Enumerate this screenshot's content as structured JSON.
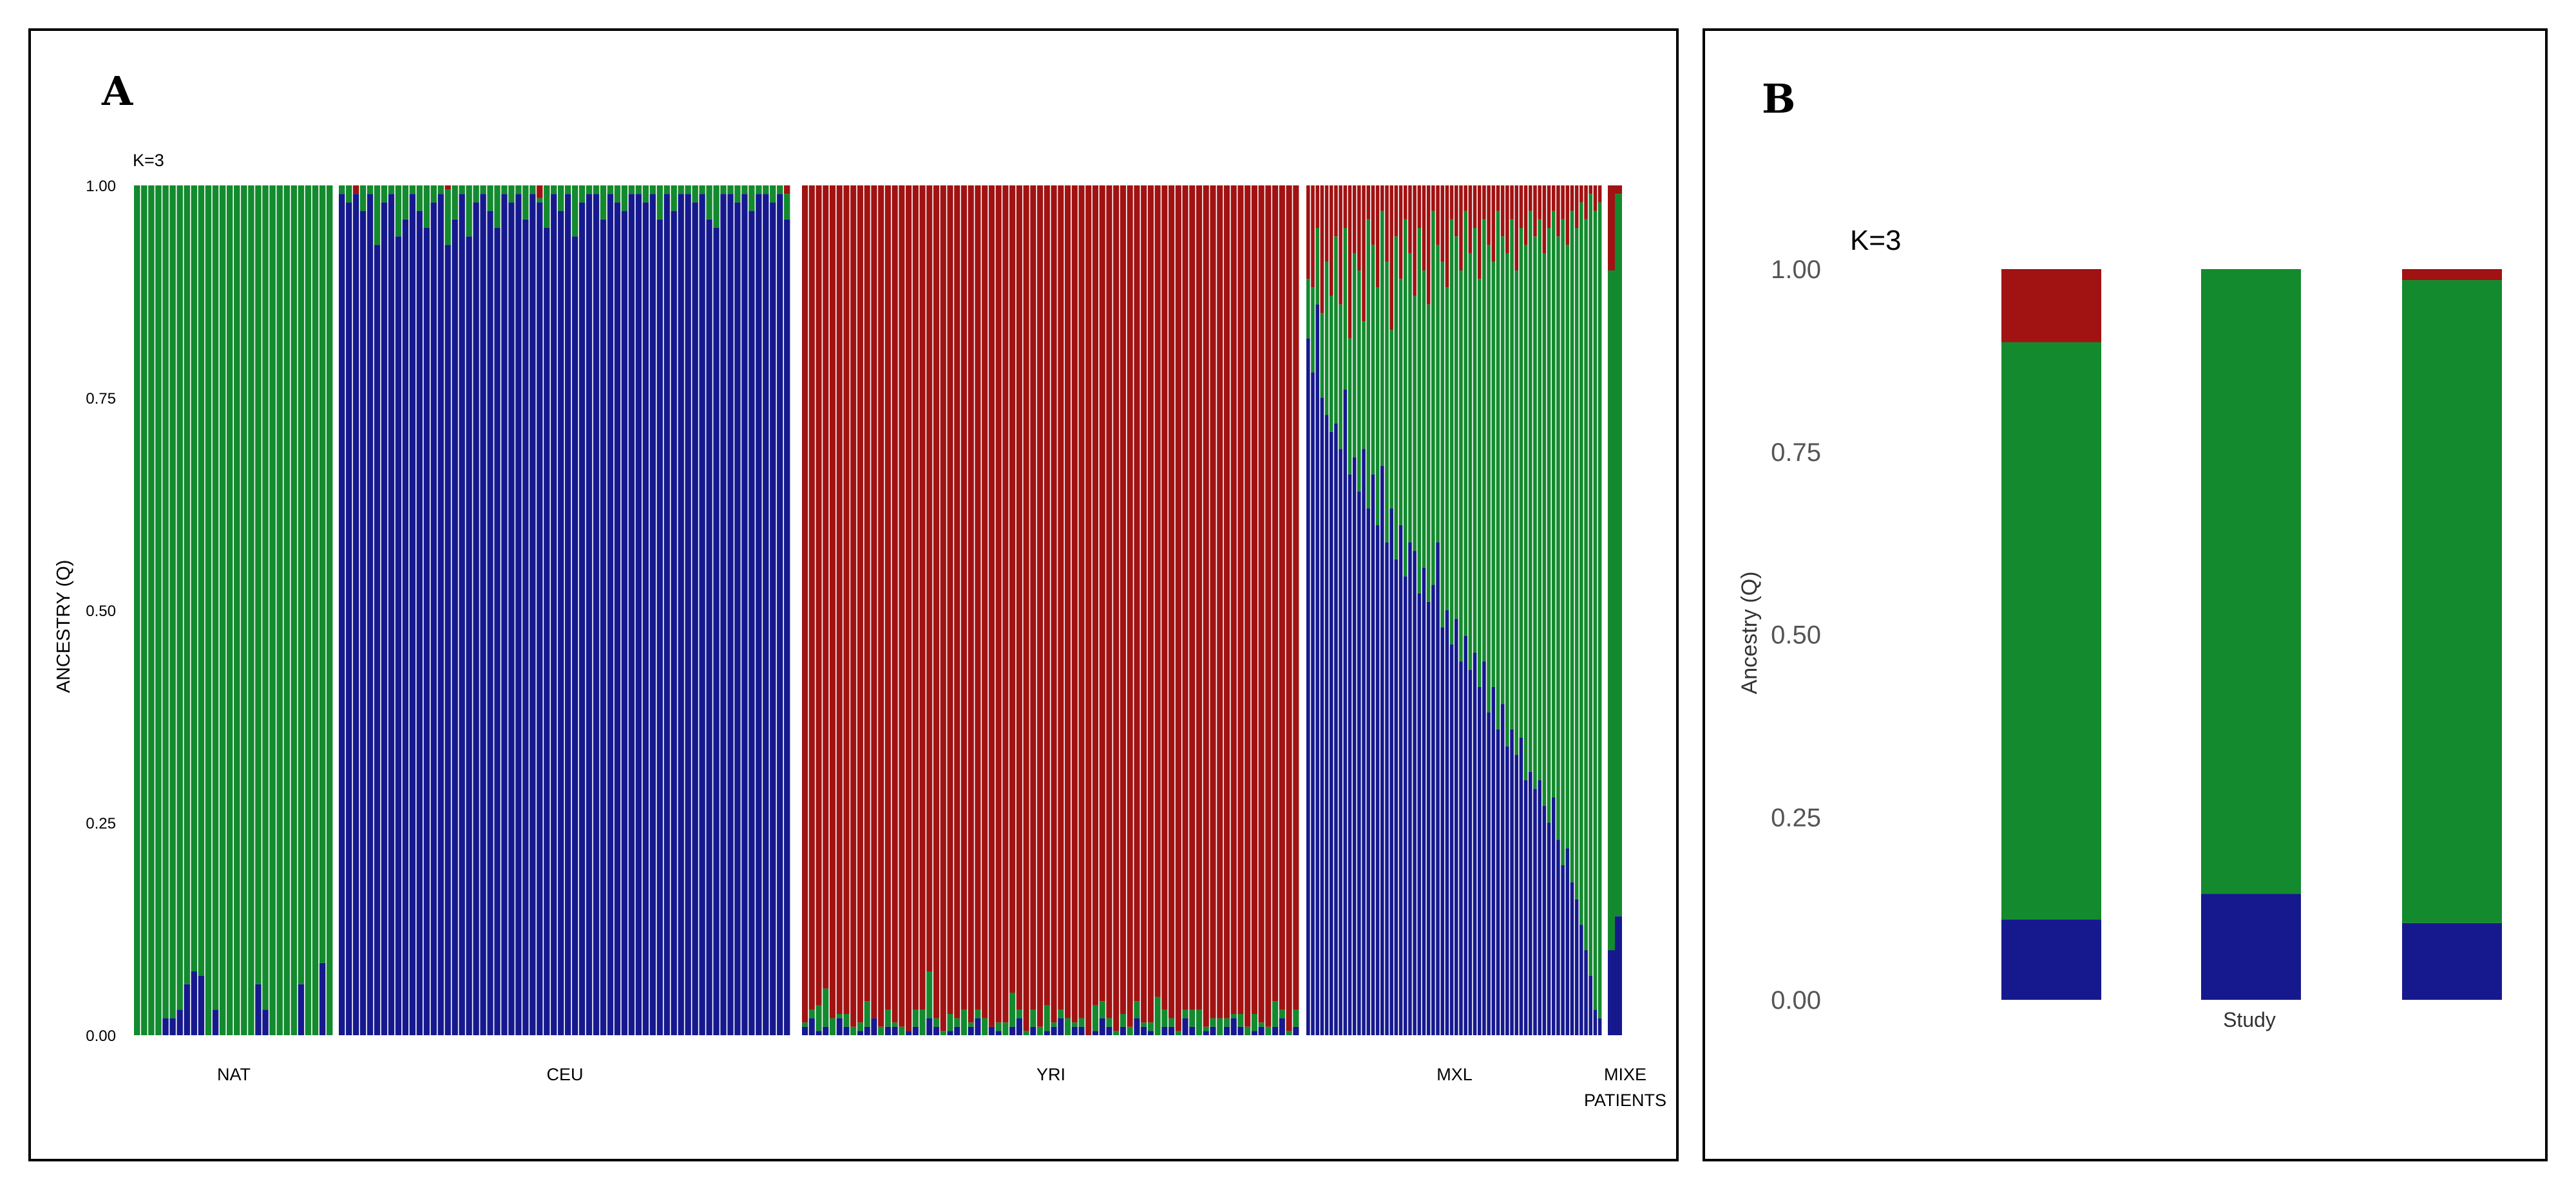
{
  "panel_a_label": "A",
  "panel_b_label": "B",
  "colors": {
    "green": "#138a2e",
    "blue": "#16198e",
    "red": "#a11212"
  },
  "chart_data": [
    {
      "type": "bar",
      "stacked": true,
      "title": "K=3",
      "ylabel": "ANCESTRY (Q)",
      "ylim": [
        0,
        1
      ],
      "yticks": [
        "0.00",
        "0.25",
        "0.50",
        "0.75",
        "1.00"
      ],
      "series_order": [
        "blue",
        "green",
        "red"
      ],
      "groups": [
        {
          "name": "NAT",
          "blue": [
            0,
            0,
            0,
            0,
            0.02,
            0.02,
            0.03,
            0.06,
            0.075,
            0.07,
            0,
            0.03,
            0,
            0,
            0,
            0,
            0,
            0.06,
            0.03,
            0,
            0,
            0,
            0,
            0.06,
            0,
            0,
            0.085,
            0
          ],
          "red": [
            0,
            0,
            0,
            0,
            0,
            0,
            0,
            0,
            0,
            0,
            0,
            0,
            0,
            0,
            0,
            0,
            0,
            0,
            0,
            0,
            0,
            0,
            0,
            0,
            0,
            0,
            0,
            0
          ]
        },
        {
          "name": "CEU",
          "blue": [
            0.99,
            0.98,
            0.99,
            0.97,
            0.99,
            0.93,
            0.98,
            0.99,
            0.94,
            0.96,
            0.99,
            0.97,
            0.95,
            0.98,
            0.99,
            0.93,
            0.96,
            0.99,
            0.94,
            0.98,
            0.99,
            0.97,
            0.95,
            0.99,
            0.98,
            0.99,
            0.96,
            0.99,
            0.98,
            0.95,
            0.99,
            0.97,
            0.99,
            0.94,
            0.98,
            0.99,
            0.99,
            0.96,
            0.99,
            0.98,
            0.97,
            0.99,
            0.99,
            0.98,
            0.99,
            0.96,
            0.99,
            0.97,
            0.99,
            0.99,
            0.98,
            0.99,
            0.96,
            0.95,
            0.99,
            0.99,
            0.98,
            0.99,
            0.97,
            0.99,
            0.99,
            0.98,
            0.99,
            0.96
          ],
          "red": [
            0,
            0,
            0.01,
            0,
            0,
            0,
            0,
            0,
            0,
            0,
            0,
            0,
            0,
            0,
            0,
            0.005,
            0,
            0,
            0,
            0,
            0,
            0,
            0,
            0,
            0,
            0,
            0,
            0,
            0.015,
            0,
            0,
            0,
            0,
            0,
            0,
            0,
            0,
            0,
            0,
            0,
            0,
            0,
            0,
            0,
            0,
            0,
            0,
            0,
            0,
            0,
            0,
            0,
            0,
            0,
            0,
            0,
            0,
            0,
            0,
            0,
            0,
            0,
            0,
            0.01
          ]
        },
        {
          "name": "YRI",
          "blue": [
            0.01,
            0.02,
            0.005,
            0.01,
            0,
            0.02,
            0.01,
            0,
            0.005,
            0.01,
            0.02,
            0,
            0.01,
            0.01,
            0,
            0.005,
            0.01,
            0,
            0.02,
            0.01,
            0,
            0.005,
            0.01,
            0,
            0.01,
            0.02,
            0,
            0.01,
            0.005,
            0,
            0.01,
            0.02,
            0,
            0.01,
            0,
            0.005,
            0.01,
            0.02,
            0,
            0.01,
            0.01,
            0,
            0.005,
            0.02,
            0.01,
            0,
            0.01,
            0,
            0.02,
            0.01,
            0.005,
            0,
            0.01,
            0.01,
            0,
            0.02,
            0.01,
            0,
            0.005,
            0.01,
            0,
            0.01,
            0.02,
            0.01,
            0,
            0.005,
            0.01,
            0,
            0.01,
            0.02,
            0,
            0.01
          ],
          "green": [
            0.005,
            0.01,
            0.03,
            0.045,
            0.02,
            0.005,
            0.015,
            0.01,
            0.01,
            0.03,
            0,
            0.01,
            0.02,
            0.005,
            0.01,
            0,
            0.02,
            0.03,
            0.055,
            0.01,
            0.005,
            0.02,
            0.01,
            0.03,
            0.005,
            0.01,
            0.02,
            0,
            0.01,
            0.015,
            0.04,
            0.01,
            0.005,
            0.02,
            0.01,
            0.03,
            0.005,
            0.01,
            0.02,
            0.005,
            0.01,
            0,
            0.03,
            0.02,
            0.01,
            0.005,
            0.015,
            0.01,
            0.02,
            0.005,
            0.01,
            0.045,
            0.02,
            0.01,
            0.005,
            0.01,
            0.02,
            0.03,
            0.005,
            0.01,
            0.02,
            0.01,
            0.005,
            0.015,
            0.01,
            0.02,
            0.005,
            0.01,
            0.03,
            0.01,
            0.005,
            0.02
          ]
        },
        {
          "name": "MXL",
          "blue": [
            0.82,
            0.78,
            0.86,
            0.75,
            0.73,
            0.71,
            0.72,
            0.69,
            0.76,
            0.66,
            0.68,
            0.64,
            0.69,
            0.62,
            0.66,
            0.6,
            0.67,
            0.58,
            0.62,
            0.56,
            0.6,
            0.54,
            0.58,
            0.57,
            0.52,
            0.55,
            0.51,
            0.53,
            0.58,
            0.48,
            0.5,
            0.46,
            0.49,
            0.44,
            0.47,
            0.43,
            0.45,
            0.41,
            0.44,
            0.38,
            0.41,
            0.36,
            0.39,
            0.34,
            0.36,
            0.33,
            0.35,
            0.3,
            0.31,
            0.29,
            0.3,
            0.27,
            0.25,
            0.28,
            0.23,
            0.2,
            0.22,
            0.18,
            0.16,
            0.13,
            0.1,
            0.07,
            0.03,
            0.02
          ],
          "red": [
            0.11,
            0.12,
            0.05,
            0.15,
            0.09,
            0.13,
            0.06,
            0.14,
            0.05,
            0.18,
            0.08,
            0.1,
            0.16,
            0.04,
            0.07,
            0.12,
            0.03,
            0.09,
            0.17,
            0.06,
            0.11,
            0.04,
            0.08,
            0.13,
            0.05,
            0.1,
            0.14,
            0.03,
            0.07,
            0.09,
            0.12,
            0.04,
            0.06,
            0.1,
            0.03,
            0.08,
            0.05,
            0.11,
            0.04,
            0.07,
            0.09,
            0.03,
            0.06,
            0.08,
            0.04,
            0.1,
            0.05,
            0.07,
            0.03,
            0.06,
            0.04,
            0.08,
            0.05,
            0.03,
            0.06,
            0.04,
            0.07,
            0.03,
            0.05,
            0.02,
            0.04,
            0.01,
            0.03,
            0.02
          ]
        },
        {
          "name": "MIXE PATIENTS",
          "blue": [
            0.1,
            0.14
          ],
          "red": [
            0.1,
            0.01
          ]
        }
      ]
    },
    {
      "type": "bar",
      "stacked": true,
      "title": "K=3",
      "ylabel": "Ancestry (Q)",
      "xlabel": "Study",
      "ylim": [
        0,
        1
      ],
      "yticks": [
        "0.00",
        "0.25",
        "0.50",
        "0.75",
        "1.00"
      ],
      "series": [
        {
          "name": "blue",
          "values": [
            0.11,
            0.145,
            0.105
          ]
        },
        {
          "name": "green",
          "values": [
            0.79,
            0.855,
            0.88
          ]
        },
        {
          "name": "red",
          "values": [
            0.1,
            0.0,
            0.015
          ]
        }
      ]
    }
  ]
}
